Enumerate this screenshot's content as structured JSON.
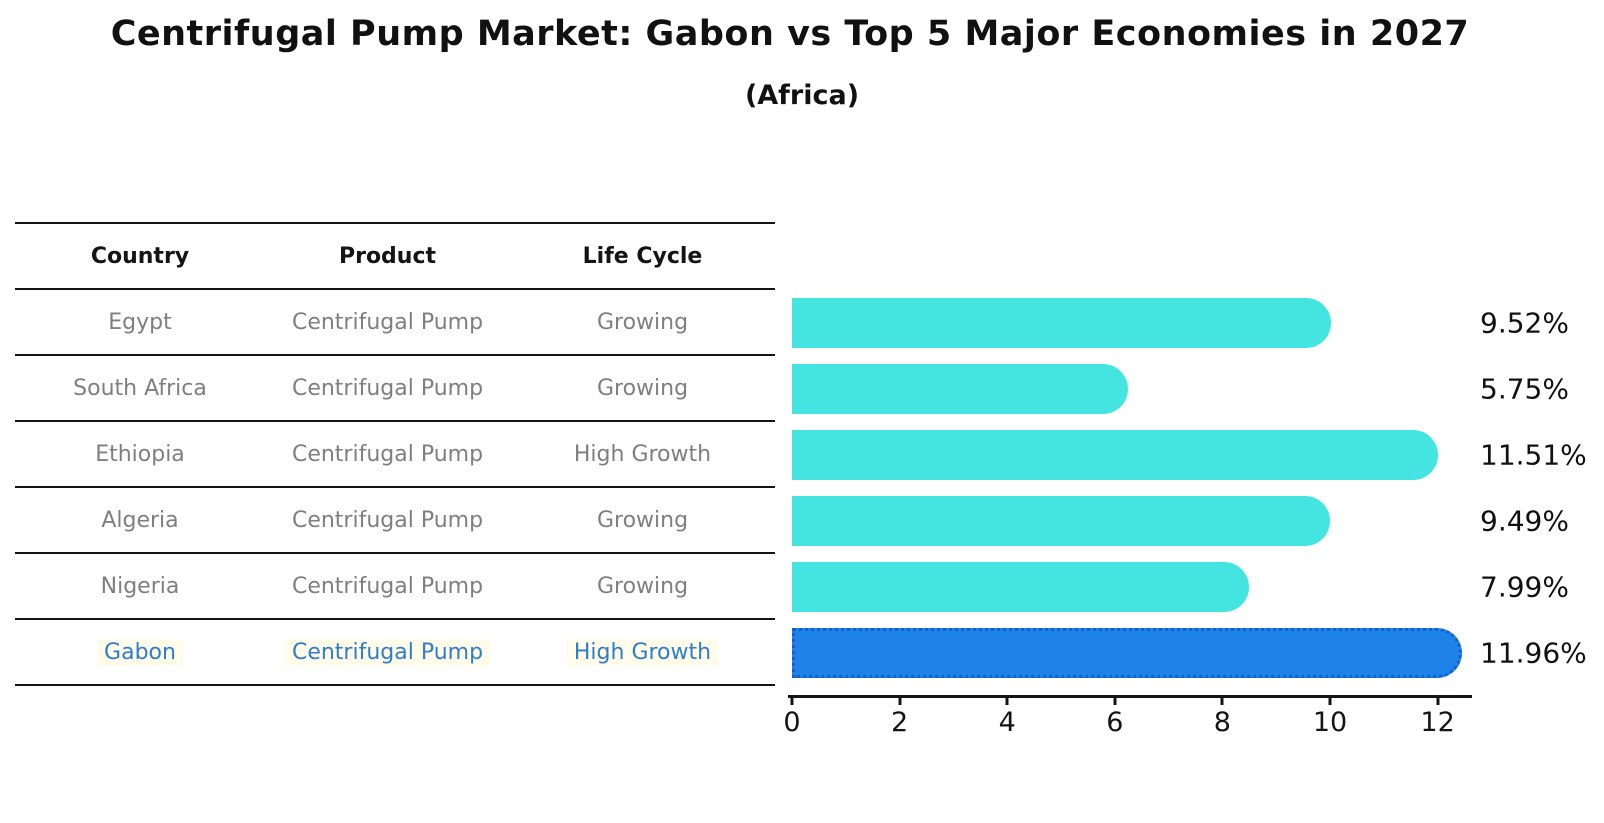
{
  "title": "Centrifugal Pump Market: Gabon vs Top 5 Major Economies in 2027",
  "subtitle": "(Africa)",
  "table": {
    "headers": [
      "Country",
      "Product",
      "Life Cycle"
    ],
    "rows": [
      {
        "country": "Egypt",
        "product": "Centrifugal Pump",
        "life_cycle": "Growing",
        "highlighted": false
      },
      {
        "country": "South Africa",
        "product": "Centrifugal Pump",
        "life_cycle": "Growing",
        "highlighted": false
      },
      {
        "country": "Ethiopia",
        "product": "Centrifugal Pump",
        "life_cycle": "High Growth",
        "highlighted": false
      },
      {
        "country": "Algeria",
        "product": "Centrifugal Pump",
        "life_cycle": "Growing",
        "highlighted": false
      },
      {
        "country": "Nigeria",
        "product": "Centrifugal Pump",
        "life_cycle": "Growing",
        "highlighted": false
      },
      {
        "country": "Gabon",
        "product": "Centrifugal Pump",
        "life_cycle": "High Growth",
        "highlighted": true
      }
    ]
  },
  "chart_data": {
    "type": "bar",
    "orientation": "horizontal",
    "title": "Centrifugal Pump Market: Gabon vs Top 5 Major Economies in 2027",
    "subtitle": "(Africa)",
    "categories": [
      "Egypt",
      "South Africa",
      "Ethiopia",
      "Algeria",
      "Nigeria",
      "Gabon"
    ],
    "values": [
      9.52,
      5.75,
      11.51,
      9.49,
      7.99,
      11.96
    ],
    "value_labels": [
      "9.52%",
      "5.75%",
      "11.51%",
      "9.49%",
      "7.99%",
      "11.96%"
    ],
    "xticks": [
      0,
      2,
      4,
      6,
      8,
      10,
      12
    ],
    "xlim": [
      0,
      12.6
    ],
    "grid": false,
    "legend": false,
    "bar_color": "#44e5e0",
    "highlight_color": "#1e82e8",
    "highlight_index": 5,
    "highlight_text_color": "#2f7dcb",
    "axis_color": "#141414",
    "label_color": "#111111"
  }
}
